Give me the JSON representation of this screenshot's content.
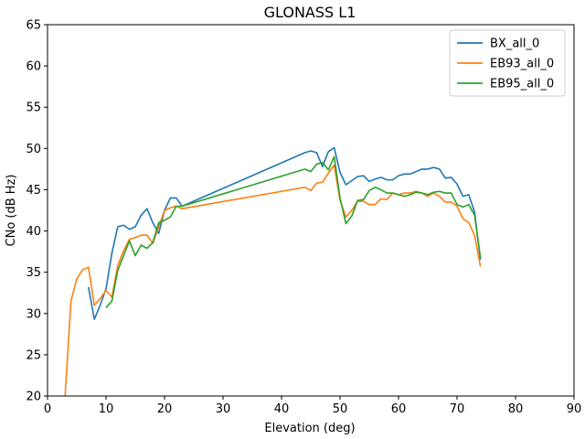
{
  "chart_data": {
    "type": "line",
    "title": "GLONASS L1",
    "xlabel": "Elevation (deg)",
    "ylabel": "CNo (dB Hz)",
    "xlim": [
      0,
      90
    ],
    "ylim": [
      20,
      65
    ],
    "xticks": [
      0,
      10,
      20,
      30,
      40,
      50,
      60,
      70,
      80,
      90
    ],
    "yticks": [
      20,
      25,
      30,
      35,
      40,
      45,
      50,
      55,
      60,
      65
    ],
    "grid": false,
    "legend_position": "top-right",
    "series": [
      {
        "name": "BX_all_0",
        "color": "#1f77b4",
        "x": [
          7,
          8,
          9,
          10,
          11,
          12,
          13,
          14,
          15,
          16,
          17,
          18,
          19,
          20,
          21,
          22,
          23,
          44,
          45,
          46,
          47,
          48,
          49,
          50,
          51,
          52,
          53,
          54,
          55,
          56,
          57,
          58,
          59,
          60,
          61,
          62,
          63,
          64,
          65,
          66,
          67,
          68,
          69,
          70,
          71,
          72,
          73,
          74
        ],
        "y": [
          33.2,
          29.3,
          31.0,
          33.0,
          37.3,
          40.5,
          40.7,
          40.2,
          40.5,
          41.9,
          42.7,
          41.0,
          39.7,
          42.5,
          44.0,
          44.0,
          43.0,
          49.5,
          49.7,
          49.5,
          47.8,
          49.6,
          50.1,
          47.1,
          45.6,
          46.1,
          46.6,
          46.7,
          46.0,
          46.3,
          46.5,
          46.2,
          46.2,
          46.7,
          46.9,
          46.9,
          47.2,
          47.5,
          47.5,
          47.7,
          47.5,
          46.4,
          46.5,
          45.7,
          44.2,
          44.4,
          42.3,
          36.5
        ]
      },
      {
        "name": "EB93_all_0",
        "color": "#ff7f0e",
        "x": [
          3,
          4,
          5,
          6,
          7,
          8,
          9,
          10,
          11,
          12,
          13,
          14,
          15,
          16,
          17,
          18,
          19,
          20,
          21,
          22,
          23,
          44,
          45,
          46,
          47,
          48,
          49,
          50,
          51,
          52,
          53,
          54,
          55,
          56,
          57,
          58,
          59,
          60,
          61,
          62,
          63,
          64,
          65,
          66,
          67,
          68,
          69,
          70,
          71,
          72,
          73,
          74
        ],
        "y": [
          20.0,
          31.5,
          34.2,
          35.3,
          35.6,
          31.0,
          31.8,
          32.8,
          32.0,
          35.8,
          37.6,
          39.0,
          39.2,
          39.5,
          39.5,
          38.5,
          40.5,
          42.5,
          42.8,
          43.0,
          42.7,
          45.3,
          44.9,
          45.8,
          45.9,
          47.0,
          48.0,
          43.7,
          41.7,
          42.5,
          43.6,
          43.6,
          43.2,
          43.2,
          43.9,
          43.8,
          44.6,
          44.4,
          44.6,
          44.6,
          44.8,
          44.6,
          44.2,
          44.6,
          44.2,
          43.5,
          43.5,
          43.0,
          41.5,
          41.0,
          39.5,
          35.7
        ]
      },
      {
        "name": "EB95_all_0",
        "color": "#2ca02c",
        "x": [
          10,
          11,
          12,
          13,
          14,
          15,
          16,
          17,
          18,
          19,
          20,
          21,
          22,
          23,
          44,
          45,
          46,
          47,
          48,
          49,
          50,
          51,
          52,
          53,
          54,
          55,
          56,
          57,
          58,
          59,
          60,
          61,
          62,
          63,
          64,
          65,
          66,
          67,
          68,
          69,
          70,
          71,
          72,
          73,
          74
        ],
        "y": [
          30.7,
          31.5,
          35.2,
          37.0,
          38.8,
          37.0,
          38.3,
          37.9,
          38.6,
          41.0,
          41.3,
          41.7,
          43.0,
          43.0,
          47.5,
          47.2,
          48.1,
          48.3,
          47.4,
          49.0,
          44.0,
          40.9,
          41.8,
          43.7,
          43.8,
          44.9,
          45.3,
          45.0,
          44.6,
          44.6,
          44.4,
          44.2,
          44.4,
          44.7,
          44.6,
          44.4,
          44.7,
          44.8,
          44.6,
          44.6,
          43.2,
          42.9,
          43.2,
          41.9,
          36.8
        ]
      }
    ]
  }
}
